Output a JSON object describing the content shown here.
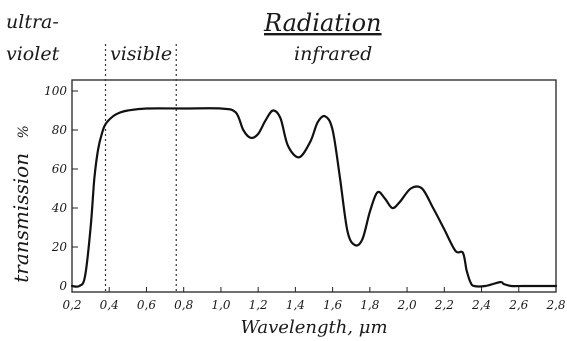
{
  "chart_data": {
    "type": "line",
    "title": "Radiation",
    "region_labels": {
      "uv_line1": "ultra-",
      "uv_line2": "violet",
      "visible": "visible",
      "infrared": "infrared"
    },
    "xlabel": "Wavelength, μm",
    "ylabel": "transmission",
    "ylabel_unit": "%",
    "xlim": [
      0.2,
      2.8
    ],
    "ylim": [
      0,
      100
    ],
    "x_tick_labels": [
      "0,2",
      "0,4",
      "0,6",
      "0,8",
      "1,0",
      "1,2",
      "1,4",
      "1,6",
      "1,8",
      "2,0",
      "2,2",
      "2,4",
      "2,6",
      "2,8"
    ],
    "x_tick_values": [
      0.2,
      0.4,
      0.6,
      0.8,
      1.0,
      1.2,
      1.4,
      1.6,
      1.8,
      2.0,
      2.2,
      2.4,
      2.6,
      2.8
    ],
    "y_tick_labels": [
      "0",
      "20",
      "40",
      "60",
      "80",
      "100"
    ],
    "y_tick_values": [
      0,
      20,
      40,
      60,
      80,
      100
    ],
    "region_boundaries": [
      0.38,
      0.76
    ],
    "grid": false,
    "series": [
      {
        "x": [
          0.2,
          0.24,
          0.27,
          0.3,
          0.32,
          0.34,
          0.36,
          0.38,
          0.42,
          0.46,
          0.5,
          0.6,
          0.8,
          1.0,
          1.08,
          1.12,
          1.16,
          1.2,
          1.24,
          1.28,
          1.32,
          1.36,
          1.42,
          1.48,
          1.52,
          1.56,
          1.6,
          1.64,
          1.68,
          1.72,
          1.76,
          1.8,
          1.84,
          1.88,
          1.92,
          1.96,
          2.02,
          2.08,
          2.14,
          2.2,
          2.26,
          2.3,
          2.32,
          2.34,
          2.36,
          2.42,
          2.5,
          2.52,
          2.56,
          2.62,
          2.7,
          2.8
        ],
        "y": [
          0,
          0,
          5,
          30,
          55,
          70,
          78,
          83,
          87,
          89,
          90,
          91,
          91,
          91,
          89,
          80,
          76,
          78,
          85,
          90,
          86,
          72,
          66,
          74,
          84,
          87,
          80,
          55,
          28,
          21,
          24,
          38,
          48,
          45,
          40,
          43,
          50,
          50,
          40,
          29,
          18,
          17,
          8,
          2,
          0,
          0,
          2,
          1,
          0,
          0,
          0,
          0
        ]
      }
    ]
  }
}
